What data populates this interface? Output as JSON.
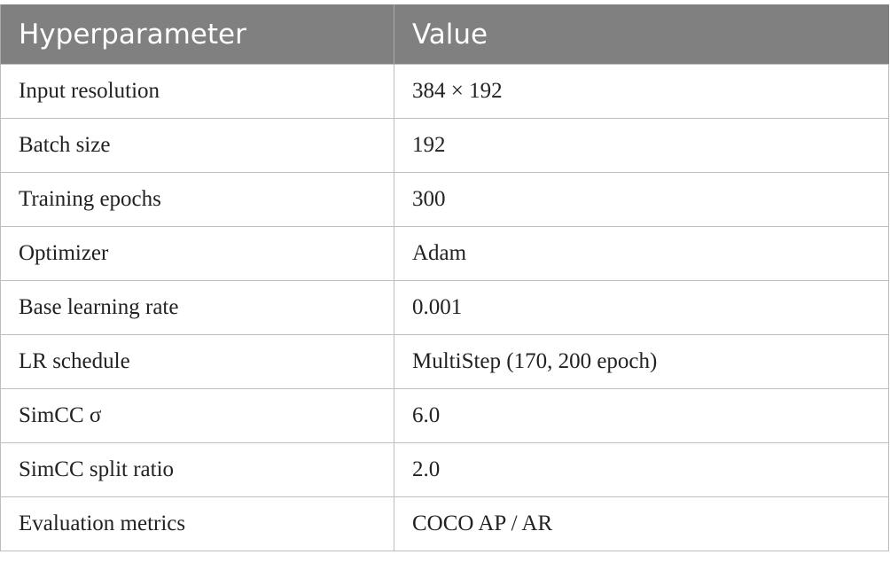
{
  "table": {
    "header": [
      "Hyperparameter",
      "Value"
    ],
    "rows": [
      [
        "Input resolution",
        "384 × 192"
      ],
      [
        "Batch size",
        "192"
      ],
      [
        "Training epochs",
        "300"
      ],
      [
        "Optimizer",
        "Adam"
      ],
      [
        "Base learning rate",
        "0.001"
      ],
      [
        "LR schedule",
        "MultiStep (170, 200 epoch)"
      ],
      [
        "SimCC σ",
        "6.0"
      ],
      [
        "SimCC split ratio",
        "2.0"
      ],
      [
        "Evaluation metrics",
        "COCO AP / AR"
      ]
    ]
  }
}
